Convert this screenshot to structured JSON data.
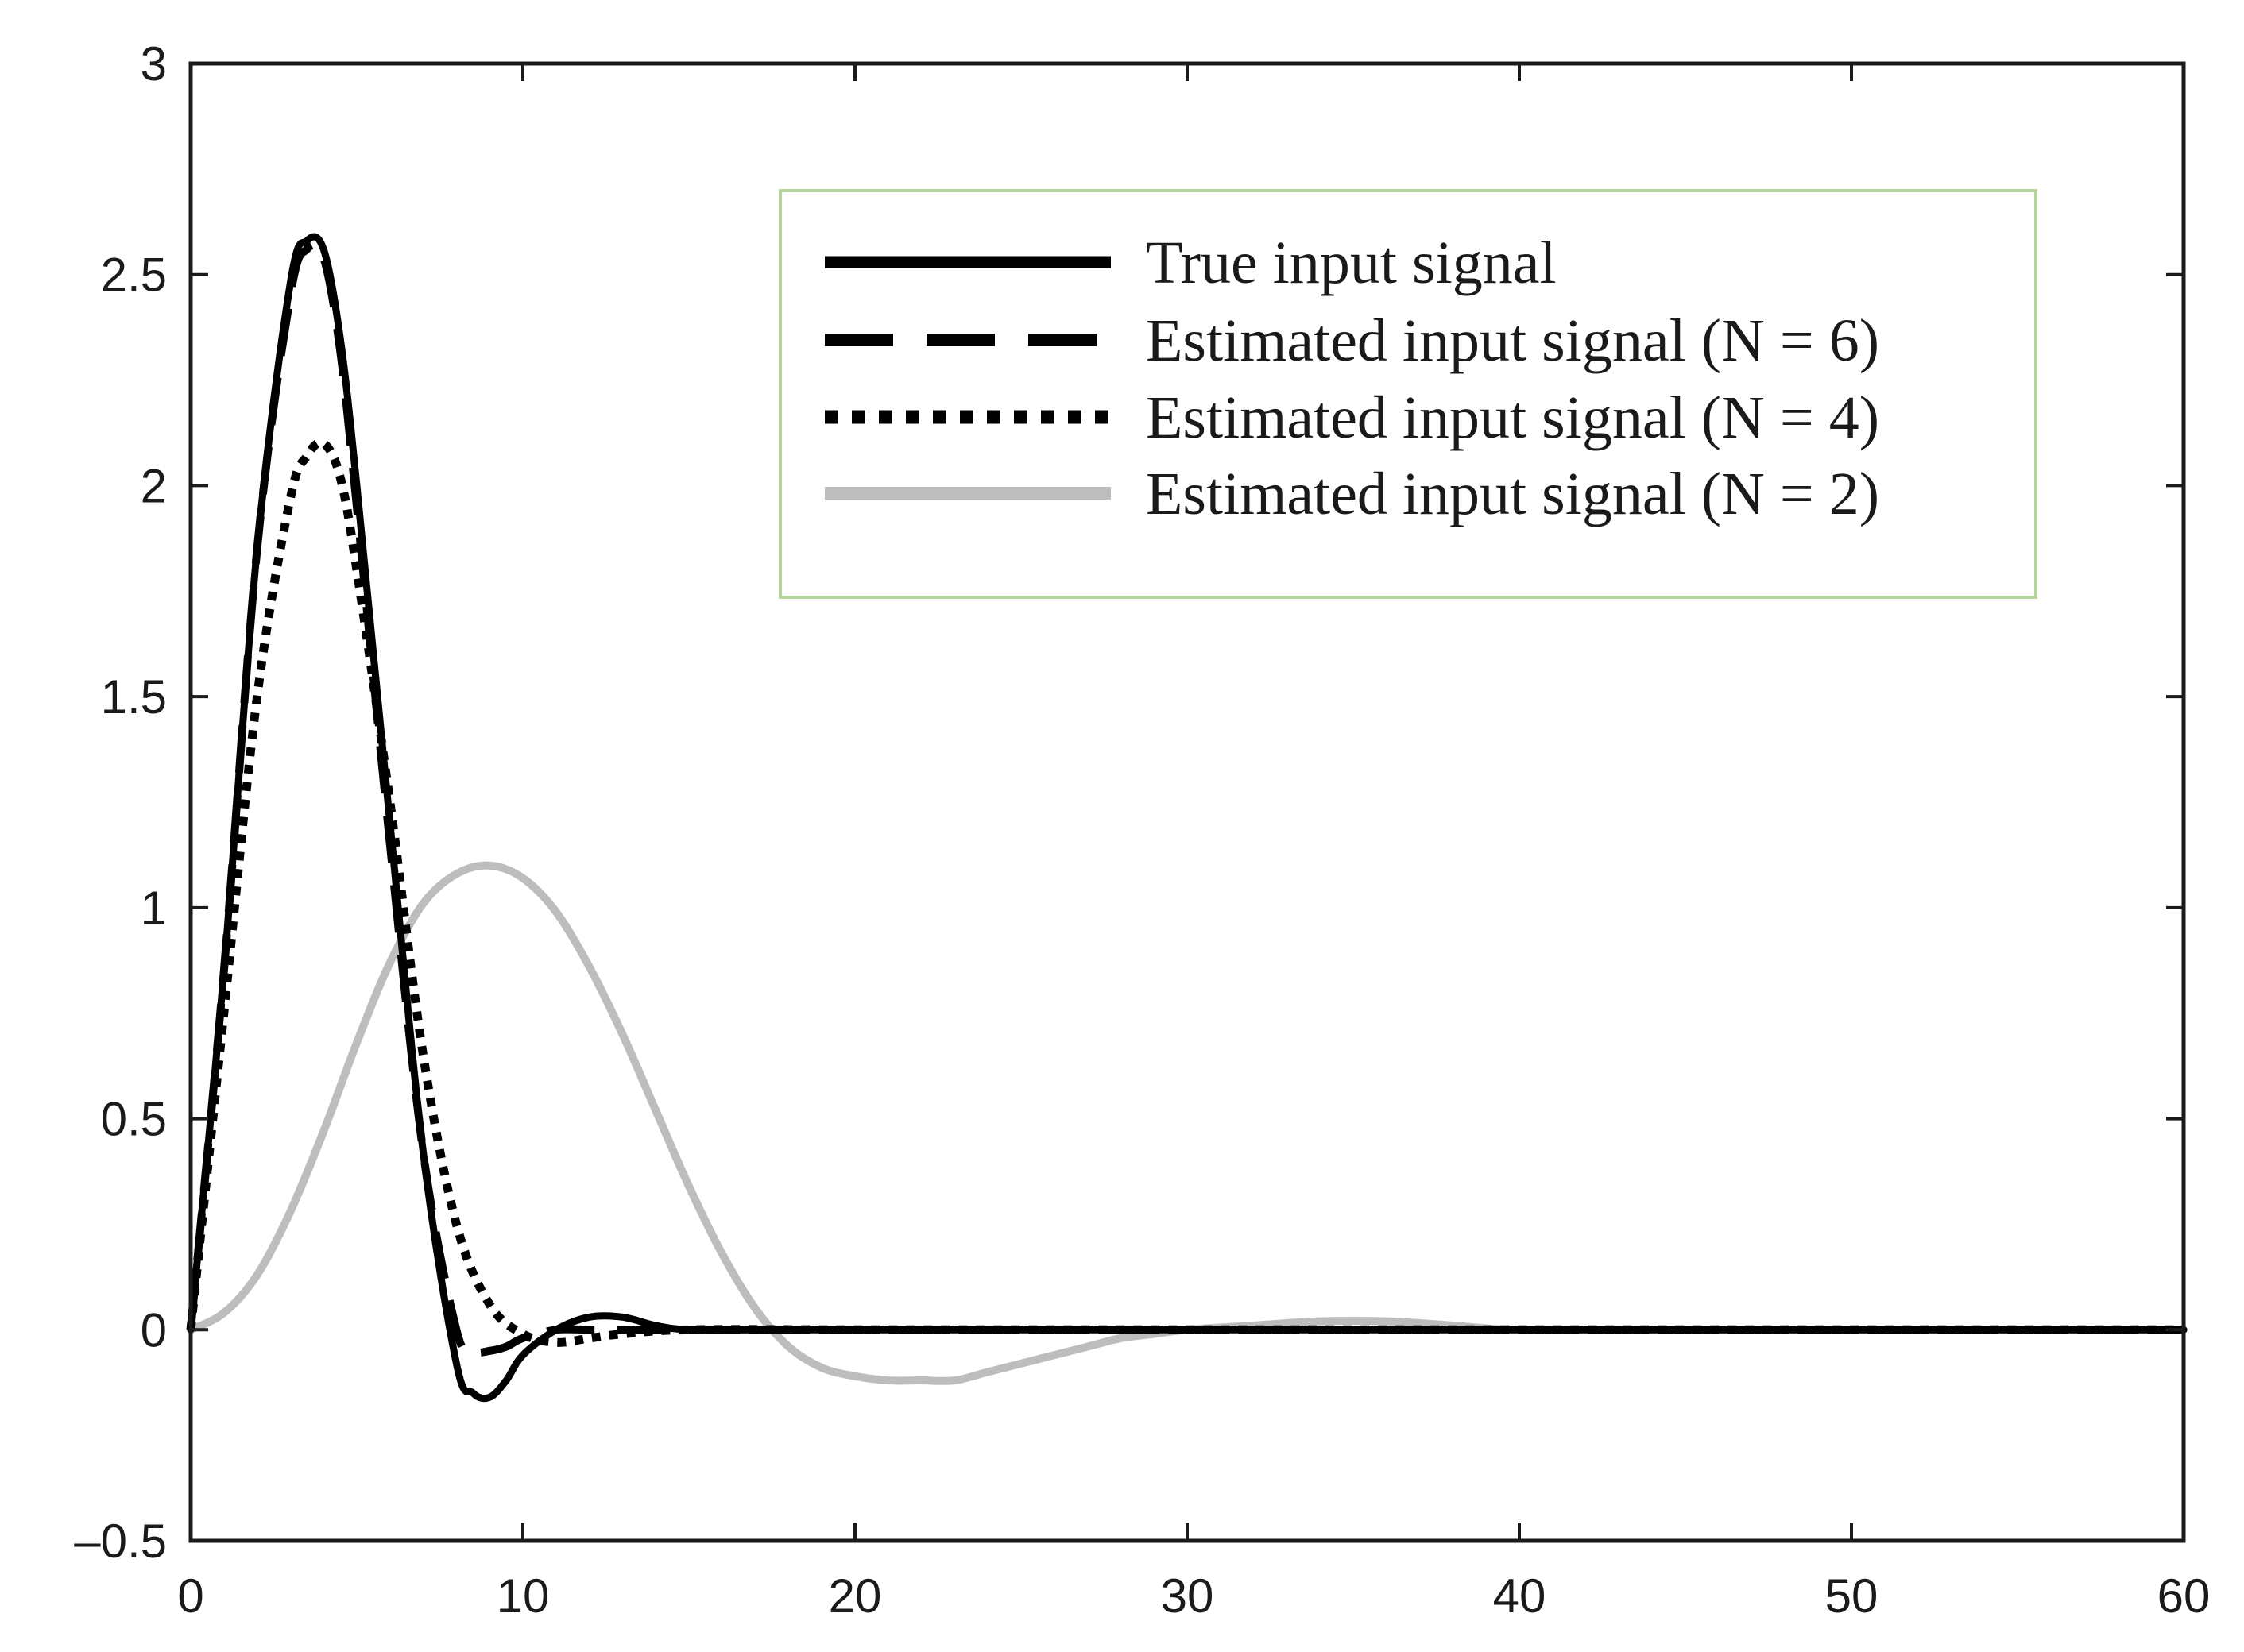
{
  "chart_data": {
    "type": "line",
    "title": "",
    "xlabel": "",
    "ylabel": "",
    "xlim": [
      0,
      60
    ],
    "ylim": [
      -0.5,
      3
    ],
    "xticks": [
      0,
      10,
      20,
      30,
      40,
      50,
      60
    ],
    "yticks": [
      -0.5,
      0,
      0.5,
      1,
      1.5,
      2,
      2.5,
      3
    ],
    "xtick_labels": [
      "0",
      "10",
      "20",
      "30",
      "40",
      "50",
      "60"
    ],
    "ytick_labels": [
      "–0.5",
      "0",
      "0.5",
      "1",
      "1.5",
      "2",
      "2.5",
      "3"
    ],
    "grid": false,
    "legend_position": "top-right",
    "legend_border_color": "#b5d39b",
    "series": [
      {
        "name": "True input signal",
        "style": "solid",
        "color": "#000000",
        "x": [
          0,
          1,
          2,
          3,
          3.5,
          4,
          4.5,
          5,
          6,
          7,
          8,
          8.5,
          9,
          9.5,
          10,
          11,
          12,
          13,
          14,
          15,
          17,
          20,
          25,
          30,
          35,
          40,
          45,
          50,
          55,
          60
        ],
        "y": [
          0,
          0.85,
          1.85,
          2.48,
          2.58,
          2.56,
          2.35,
          2.0,
          1.2,
          0.42,
          -0.08,
          -0.15,
          -0.16,
          -0.12,
          -0.06,
          0.0,
          0.03,
          0.03,
          0.01,
          0.0,
          0,
          0,
          0,
          0,
          0,
          0,
          0,
          0,
          0,
          0
        ]
      },
      {
        "name": "Estimated input signal (N = 6)",
        "style": "dashed",
        "color": "#000000",
        "x": [
          0,
          1,
          2,
          3,
          3.5,
          4,
          4.5,
          5,
          6,
          7,
          8,
          8.5,
          9,
          9.5,
          10,
          11,
          12,
          13,
          15,
          20,
          25,
          30,
          35,
          40,
          45,
          50,
          55,
          60
        ],
        "y": [
          0,
          0.85,
          1.85,
          2.45,
          2.56,
          2.54,
          2.32,
          1.95,
          1.15,
          0.42,
          0.0,
          -0.05,
          -0.05,
          -0.04,
          -0.02,
          0.0,
          0.0,
          0.0,
          0,
          0,
          0,
          0,
          0,
          0,
          0,
          0,
          0,
          0
        ]
      },
      {
        "name": "Estimated input signal (N = 4)",
        "style": "dotted",
        "color": "#000000",
        "x": [
          0,
          1,
          2,
          3,
          3.5,
          4,
          4.5,
          5,
          6,
          7,
          8,
          9,
          10,
          11,
          12,
          13,
          15,
          20,
          25,
          30,
          35,
          40,
          45,
          50,
          55,
          60
        ],
        "y": [
          0,
          0.75,
          1.5,
          1.97,
          2.07,
          2.1,
          2.02,
          1.8,
          1.25,
          0.65,
          0.25,
          0.06,
          -0.01,
          -0.03,
          -0.02,
          -0.01,
          0,
          0,
          0,
          0,
          0,
          0,
          0,
          0,
          0,
          0
        ]
      },
      {
        "name": "Estimated input signal (N = 2)",
        "style": "solid-gray",
        "color": "#bdbdbd",
        "x": [
          0,
          1,
          2,
          3,
          4,
          5,
          6,
          7,
          8,
          9,
          10,
          11,
          12,
          13,
          14,
          15,
          16,
          17,
          18,
          19,
          20,
          21,
          22,
          23,
          24,
          25,
          26,
          27,
          28,
          29,
          30,
          32,
          34,
          36,
          38,
          40,
          45,
          50,
          55,
          60
        ],
        "y": [
          0,
          0.04,
          0.13,
          0.28,
          0.47,
          0.68,
          0.87,
          1.01,
          1.08,
          1.1,
          1.07,
          0.99,
          0.86,
          0.7,
          0.52,
          0.34,
          0.18,
          0.05,
          -0.04,
          -0.09,
          -0.11,
          -0.12,
          -0.12,
          -0.12,
          -0.1,
          -0.08,
          -0.06,
          -0.04,
          -0.02,
          -0.01,
          0.0,
          0.01,
          0.02,
          0.02,
          0.01,
          0.0,
          0,
          0,
          0,
          0
        ]
      }
    ]
  }
}
